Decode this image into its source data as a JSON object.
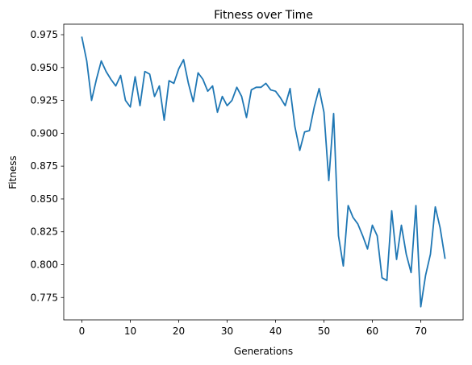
{
  "chart_data": {
    "type": "line",
    "title": "Fitness over Time",
    "xlabel": "Generations",
    "ylabel": "Fitness",
    "xlim": [
      -3.75,
      78.75
    ],
    "ylim": [
      0.758,
      0.983
    ],
    "xticks": [
      0,
      10,
      20,
      30,
      40,
      50,
      60,
      70
    ],
    "yticks": [
      0.775,
      0.8,
      0.825,
      0.85,
      0.875,
      0.9,
      0.925,
      0.95,
      0.975
    ],
    "xtick_labels": [
      "0",
      "10",
      "20",
      "30",
      "40",
      "50",
      "60",
      "70"
    ],
    "ytick_labels": [
      "0.775",
      "0.800",
      "0.825",
      "0.850",
      "0.875",
      "0.900",
      "0.925",
      "0.950",
      "0.975"
    ],
    "grid": false,
    "legend": "none",
    "series": [
      {
        "color": "#1f77b4",
        "x": [
          0,
          1,
          2,
          3,
          4,
          5,
          6,
          7,
          8,
          9,
          10,
          11,
          12,
          13,
          14,
          15,
          16,
          17,
          18,
          19,
          20,
          21,
          22,
          23,
          24,
          25,
          26,
          27,
          28,
          29,
          30,
          31,
          32,
          33,
          34,
          35,
          36,
          37,
          38,
          39,
          40,
          41,
          42,
          43,
          44,
          45,
          46,
          47,
          48,
          49,
          50,
          51,
          52,
          53,
          54,
          55,
          56,
          57,
          58,
          59,
          60,
          61,
          62,
          63,
          64,
          65,
          66,
          67,
          68,
          69,
          70,
          71,
          72,
          73,
          74,
          75
        ],
        "y": [
          0.973,
          0.955,
          0.925,
          0.941,
          0.955,
          0.947,
          0.941,
          0.936,
          0.944,
          0.925,
          0.92,
          0.943,
          0.921,
          0.947,
          0.945,
          0.928,
          0.936,
          0.91,
          0.94,
          0.938,
          0.949,
          0.956,
          0.938,
          0.924,
          0.946,
          0.941,
          0.932,
          0.936,
          0.916,
          0.928,
          0.921,
          0.925,
          0.935,
          0.928,
          0.912,
          0.933,
          0.935,
          0.935,
          0.938,
          0.933,
          0.932,
          0.927,
          0.921,
          0.934,
          0.905,
          0.887,
          0.901,
          0.902,
          0.92,
          0.934,
          0.916,
          0.864,
          0.915,
          0.822,
          0.799,
          0.845,
          0.836,
          0.831,
          0.822,
          0.812,
          0.83,
          0.822,
          0.79,
          0.788,
          0.841,
          0.804,
          0.83,
          0.808,
          0.794,
          0.845,
          0.768,
          0.792,
          0.808,
          0.844,
          0.828,
          0.805
        ]
      }
    ]
  }
}
